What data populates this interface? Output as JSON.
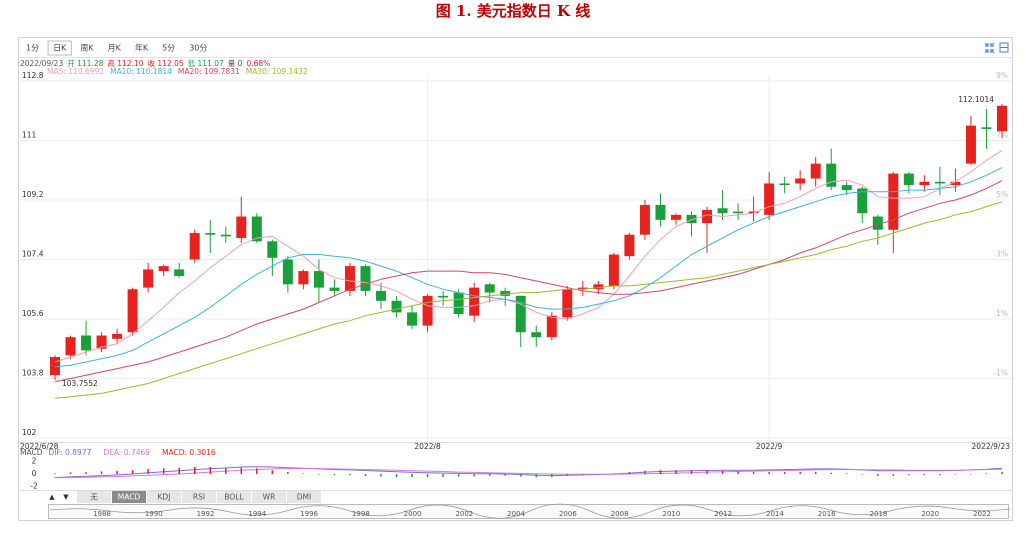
{
  "page_title": "图 1.  美元指数日 K 线",
  "toolbar": [
    "1分",
    "日K",
    "周K",
    "月K",
    "年K",
    "5分",
    "30分"
  ],
  "toolbar_selected": 1,
  "info_line": [
    "2022/09/23",
    "开 111.28",
    "高 112.10",
    "收 112.05",
    "低 111.07",
    "量 0",
    "0.68%"
  ],
  "indicator_arrows": [
    "▲",
    "▼"
  ],
  "indicator_tabs": [
    "无",
    "MACD",
    "KDJ",
    "RSI",
    "BOLL",
    "WR",
    "DMI"
  ],
  "indicator_selected": 1,
  "navigator_years": [
    "1988",
    "1990",
    "1992",
    "1994",
    "1996",
    "1998",
    "2000",
    "2002",
    "2004",
    "2006",
    "2008",
    "2010",
    "2012",
    "2014",
    "2016",
    "2018",
    "2020",
    "2022"
  ],
  "chart_data": [
    {
      "type": "candlestick",
      "categories": [
        "2022/6/28",
        null,
        null,
        null,
        null,
        null,
        null,
        null,
        null,
        null,
        null,
        null,
        null,
        null,
        null,
        null,
        null,
        null,
        null,
        null,
        null,
        null,
        null,
        null,
        "2022/8",
        null,
        null,
        null,
        null,
        null,
        null,
        null,
        null,
        null,
        null,
        null,
        null,
        null,
        null,
        null,
        null,
        null,
        null,
        null,
        null,
        null,
        "2022/9",
        null,
        null,
        null,
        null,
        null,
        null,
        null,
        null,
        null,
        null,
        null,
        null,
        null,
        null,
        "2022/9/23"
      ],
      "open": [
        103.9,
        104.5,
        105.1,
        104.7,
        105.0,
        105.2,
        106.55,
        107.05,
        107.1,
        107.4,
        108.2,
        108.15,
        108.05,
        108.7,
        107.95,
        107.4,
        106.65,
        107.05,
        106.55,
        106.45,
        107.2,
        106.45,
        106.15,
        105.8,
        105.4,
        106.3,
        106.4,
        105.7,
        106.65,
        106.45,
        106.3,
        105.2,
        105.05,
        105.65,
        106.5,
        106.5,
        106.6,
        107.5,
        108.15,
        109.05,
        108.6,
        108.75,
        108.5,
        108.95,
        108.85,
        108.8,
        108.75,
        109.7,
        109.7,
        109.85,
        110.3,
        109.65,
        109.55,
        108.7,
        108.3,
        110.0,
        109.65,
        109.75,
        109.65,
        110.3,
        111.4,
        111.28
      ],
      "high": [
        104.5,
        105.1,
        105.55,
        105.2,
        105.3,
        106.55,
        107.3,
        107.25,
        107.3,
        108.3,
        108.6,
        108.4,
        109.3,
        108.8,
        108.0,
        107.5,
        107.1,
        107.4,
        106.8,
        107.3,
        107.25,
        106.7,
        106.3,
        106.0,
        106.35,
        106.45,
        106.5,
        106.7,
        106.7,
        106.55,
        106.3,
        105.4,
        105.8,
        106.6,
        106.75,
        106.75,
        107.6,
        108.2,
        109.2,
        109.4,
        108.8,
        108.85,
        109.0,
        109.5,
        109.1,
        109.3,
        110.05,
        109.9,
        110.1,
        110.5,
        110.75,
        109.75,
        109.6,
        108.75,
        110.05,
        110.05,
        109.95,
        110.2,
        110.15,
        111.75,
        111.95,
        112.1014
      ],
      "low": [
        103.7552,
        104.4,
        104.5,
        104.6,
        104.85,
        105.1,
        106.4,
        106.9,
        106.85,
        107.3,
        107.6,
        107.9,
        107.9,
        107.9,
        106.9,
        106.4,
        106.5,
        106.1,
        106.3,
        106.3,
        106.3,
        105.9,
        105.65,
        105.3,
        105.2,
        106.0,
        105.65,
        105.5,
        106.1,
        106.0,
        104.75,
        104.75,
        104.95,
        105.55,
        106.3,
        106.35,
        106.5,
        107.4,
        108.0,
        108.4,
        108.45,
        108.1,
        107.6,
        108.6,
        108.6,
        108.55,
        108.6,
        109.4,
        109.5,
        109.6,
        109.5,
        109.35,
        108.5,
        107.85,
        107.6,
        109.4,
        109.45,
        109.35,
        109.45,
        110.25,
        110.75,
        111.07
      ],
      "close": [
        104.45,
        105.05,
        104.65,
        105.1,
        105.15,
        106.5,
        107.1,
        107.2,
        106.9,
        108.2,
        108.15,
        108.1,
        108.7,
        107.95,
        107.45,
        106.65,
        107.05,
        106.55,
        106.45,
        107.2,
        106.45,
        106.15,
        105.8,
        105.4,
        106.3,
        106.25,
        105.75,
        106.55,
        106.4,
        106.3,
        105.2,
        105.05,
        105.7,
        106.5,
        106.55,
        106.65,
        107.55,
        108.15,
        109.05,
        108.6,
        108.75,
        108.5,
        108.9,
        108.8,
        108.8,
        108.85,
        109.7,
        109.65,
        109.85,
        110.3,
        109.6,
        109.5,
        108.8,
        108.3,
        110.0,
        109.65,
        109.75,
        109.7,
        109.75,
        111.45,
        111.35,
        112.05
      ],
      "up_color": "#e8231f",
      "down_color": "#1aa03a",
      "max_label": "112.1014",
      "min_label": "103.7552",
      "ylim": [
        102,
        112.8
      ],
      "yticks": [
        {
          "value": 102,
          "label": "102"
        },
        {
          "value": 103.8,
          "label": "103.8"
        },
        {
          "value": 105.6,
          "label": "105.6"
        },
        {
          "value": 107.4,
          "label": "107.4"
        },
        {
          "value": 109.2,
          "label": "109.2"
        },
        {
          "value": 111,
          "label": "111"
        },
        {
          "value": 112.8,
          "label": "112.8"
        }
      ],
      "y2ticks": [
        {
          "value": 103.8,
          "label": "-1%"
        },
        {
          "value": 105.6,
          "label": "1%"
        },
        {
          "value": 107.4,
          "label": "3%"
        },
        {
          "value": 109.2,
          "label": "5%"
        },
        {
          "value": 111,
          "label": "7%"
        },
        {
          "value": 112.8,
          "label": "9%"
        }
      ],
      "grid": true,
      "overlays": [
        {
          "name": "MA5: 110.6992",
          "color": "#f0a0b8",
          "values": [
            104.3,
            104.45,
            104.6,
            104.75,
            104.85,
            105.15,
            105.55,
            105.95,
            106.4,
            106.75,
            107.15,
            107.5,
            107.85,
            108.05,
            108.1,
            107.8,
            107.5,
            107.1,
            106.85,
            106.75,
            106.7,
            106.6,
            106.45,
            106.2,
            106.0,
            105.95,
            105.95,
            106.0,
            106.15,
            106.2,
            106.05,
            105.8,
            105.65,
            105.6,
            105.75,
            105.95,
            106.35,
            106.9,
            107.5,
            108.0,
            108.4,
            108.6,
            108.75,
            108.7,
            108.75,
            108.8,
            109.0,
            109.1,
            109.3,
            109.55,
            109.75,
            109.8,
            109.65,
            109.3,
            109.25,
            109.25,
            109.3,
            109.55,
            109.75,
            110.05,
            110.4,
            110.6992
          ]
        },
        {
          "name": "MA10: 110.1814",
          "color": "#3cb4dc",
          "values": [
            104.15,
            104.2,
            104.3,
            104.4,
            104.5,
            104.65,
            104.9,
            105.15,
            105.4,
            105.65,
            105.95,
            106.3,
            106.65,
            106.95,
            107.2,
            107.45,
            107.55,
            107.55,
            107.5,
            107.45,
            107.35,
            107.2,
            107.05,
            106.85,
            106.65,
            106.5,
            106.4,
            106.3,
            106.25,
            106.2,
            106.1,
            105.95,
            105.9,
            105.9,
            105.95,
            106.05,
            106.15,
            106.3,
            106.55,
            106.85,
            107.2,
            107.55,
            107.8,
            108.05,
            108.3,
            108.5,
            108.7,
            108.85,
            109.0,
            109.15,
            109.3,
            109.4,
            109.45,
            109.45,
            109.45,
            109.5,
            109.5,
            109.55,
            109.6,
            109.75,
            109.95,
            110.1814
          ]
        },
        {
          "name": "MA20: 109.7831",
          "color": "#d9446e",
          "values": [
            103.7,
            103.8,
            103.9,
            104.0,
            104.1,
            104.2,
            104.3,
            104.45,
            104.6,
            104.75,
            104.9,
            105.05,
            105.25,
            105.45,
            105.6,
            105.75,
            105.9,
            106.1,
            106.3,
            106.5,
            106.65,
            106.8,
            106.9,
            107.0,
            107.05,
            107.05,
            107.05,
            107.0,
            107.0,
            106.95,
            106.85,
            106.75,
            106.65,
            106.55,
            106.45,
            106.4,
            106.35,
            106.35,
            106.4,
            106.45,
            106.55,
            106.65,
            106.75,
            106.85,
            106.95,
            107.1,
            107.25,
            107.4,
            107.6,
            107.75,
            107.95,
            108.15,
            108.3,
            108.45,
            108.6,
            108.8,
            108.95,
            109.1,
            109.2,
            109.35,
            109.55,
            109.7831
          ]
        },
        {
          "name": "MA30: 109.1432",
          "color": "#9cbb2c",
          "values": [
            103.2,
            103.25,
            103.3,
            103.35,
            103.45,
            103.55,
            103.65,
            103.8,
            103.95,
            104.1,
            104.25,
            104.4,
            104.55,
            104.7,
            104.85,
            105.0,
            105.15,
            105.3,
            105.45,
            105.55,
            105.7,
            105.8,
            105.9,
            106.0,
            106.1,
            106.15,
            106.2,
            106.25,
            106.3,
            106.35,
            106.4,
            106.4,
            106.45,
            106.5,
            106.5,
            106.55,
            106.6,
            106.6,
            106.65,
            106.7,
            106.75,
            106.8,
            106.85,
            106.95,
            107.05,
            107.15,
            107.25,
            107.35,
            107.45,
            107.55,
            107.7,
            107.8,
            107.95,
            108.05,
            108.2,
            108.35,
            108.5,
            108.6,
            108.75,
            108.85,
            109.0,
            109.1432
          ]
        }
      ]
    },
    {
      "type": "macd",
      "title": "MACD",
      "ylim": [
        -3,
        3
      ],
      "yticks": [
        -2,
        0,
        2
      ],
      "series": [
        {
          "name": "DIF: 0.8977",
          "color": "#7b6be0",
          "values": [
            -0.55,
            -0.45,
            -0.35,
            -0.25,
            -0.15,
            0.0,
            0.2,
            0.35,
            0.5,
            0.7,
            0.85,
            0.95,
            1.1,
            1.15,
            1.1,
            1.0,
            0.9,
            0.8,
            0.7,
            0.65,
            0.55,
            0.45,
            0.35,
            0.25,
            0.2,
            0.15,
            0.1,
            0.05,
            0.05,
            0.0,
            -0.1,
            -0.2,
            -0.25,
            -0.2,
            -0.15,
            -0.1,
            0.0,
            0.15,
            0.3,
            0.4,
            0.45,
            0.5,
            0.55,
            0.6,
            0.6,
            0.6,
            0.65,
            0.7,
            0.75,
            0.8,
            0.8,
            0.75,
            0.65,
            0.5,
            0.5,
            0.5,
            0.5,
            0.5,
            0.55,
            0.65,
            0.75,
            0.8977
          ]
        },
        {
          "name": "DEA: 0.7469",
          "color": "#d67ad6",
          "values": [
            -0.6,
            -0.57,
            -0.5,
            -0.45,
            -0.4,
            -0.3,
            -0.2,
            -0.1,
            0.0,
            0.15,
            0.3,
            0.45,
            0.6,
            0.7,
            0.8,
            0.85,
            0.85,
            0.85,
            0.8,
            0.75,
            0.7,
            0.65,
            0.6,
            0.5,
            0.45,
            0.4,
            0.3,
            0.25,
            0.2,
            0.15,
            0.1,
            0.05,
            0.0,
            -0.05,
            -0.05,
            -0.05,
            -0.05,
            0.0,
            0.05,
            0.1,
            0.15,
            0.2,
            0.3,
            0.35,
            0.4,
            0.45,
            0.5,
            0.55,
            0.6,
            0.65,
            0.7,
            0.7,
            0.7,
            0.65,
            0.65,
            0.6,
            0.6,
            0.6,
            0.6,
            0.65,
            0.7,
            0.7469
          ]
        },
        {
          "name": "MACD: 0.3016",
          "color": "#e8231f",
          "down_color": "#1aa03a",
          "values": [
            0.1,
            0.24,
            0.3,
            0.4,
            0.5,
            0.6,
            0.8,
            0.9,
            1.0,
            1.1,
            1.1,
            1.0,
            1.0,
            0.9,
            0.6,
            0.3,
            0.1,
            -0.1,
            -0.2,
            -0.2,
            -0.3,
            -0.4,
            -0.5,
            -0.5,
            -0.5,
            -0.5,
            -0.4,
            -0.4,
            -0.3,
            -0.3,
            -0.4,
            -0.5,
            -0.5,
            -0.3,
            -0.2,
            -0.1,
            0.1,
            0.3,
            0.5,
            0.6,
            0.6,
            0.6,
            0.5,
            0.5,
            0.4,
            0.3,
            0.3,
            0.3,
            0.3,
            0.3,
            0.2,
            0.1,
            -0.1,
            -0.3,
            -0.3,
            -0.2,
            -0.2,
            -0.2,
            -0.1,
            0.0,
            0.1,
            0.3016
          ]
        }
      ]
    }
  ]
}
